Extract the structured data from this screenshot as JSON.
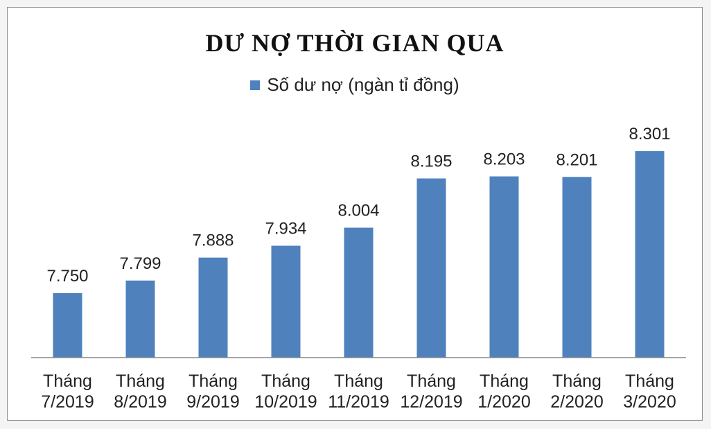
{
  "chart_data": {
    "type": "bar",
    "title": "DƯ NỢ THỜI GIAN QUA",
    "legend": {
      "label": "Số dư nợ (ngàn tỉ đồng)",
      "position": "top"
    },
    "series": [
      {
        "name": "Số dư nợ (ngàn tỉ đồng)",
        "values": [
          7.75,
          7.799,
          7.888,
          7.934,
          8.004,
          8.195,
          8.203,
          8.201,
          8.301
        ]
      }
    ],
    "value_labels": [
      "7.750",
      "7.799",
      "7.888",
      "7.934",
      "8.004",
      "8.195",
      "8.203",
      "8.201",
      "8.301"
    ],
    "categories": [
      [
        "Tháng",
        "7/2019"
      ],
      [
        "Tháng",
        "8/2019"
      ],
      [
        "Tháng",
        "9/2019"
      ],
      [
        "Tháng",
        "10/2019"
      ],
      [
        "Tháng",
        "11/2019"
      ],
      [
        "Tháng",
        "12/2019"
      ],
      [
        "Tháng",
        "1/2020"
      ],
      [
        "Tháng",
        "2/2020"
      ],
      [
        "Tháng",
        "3/2020"
      ]
    ],
    "ylim": [
      7.5,
      8.32
    ],
    "grid": false,
    "colors": {
      "bar": "#4f81bd",
      "axis": "#888888",
      "text": "#222222"
    }
  }
}
